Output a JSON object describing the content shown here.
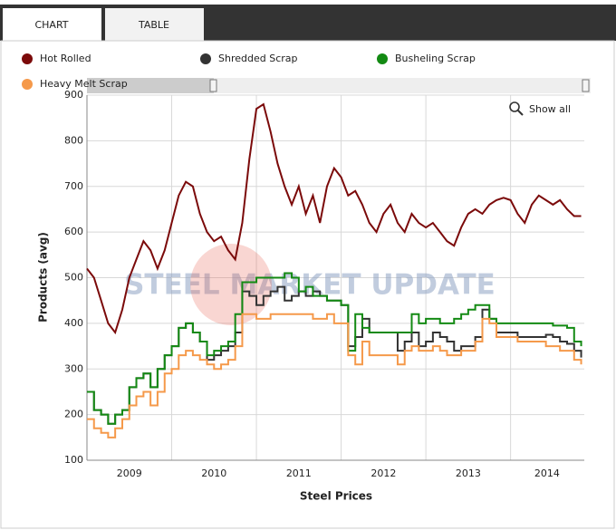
{
  "tabs": [
    "CHART",
    "TABLE"
  ],
  "show_all": "Show all",
  "watermark": "STEEL MARKET UPDATE",
  "chart_data": {
    "type": "line",
    "xlabel": "Steel Prices",
    "ylabel": "Products (avg)",
    "xlim": [
      2009.0,
      2014.87
    ],
    "ylim": [
      100,
      900
    ],
    "yticks": [
      100,
      200,
      300,
      400,
      500,
      600,
      700,
      800,
      900
    ],
    "xticks": [
      {
        "value": 2009.5,
        "label": "2009"
      },
      {
        "value": 2010.5,
        "label": "2010"
      },
      {
        "value": 2011.5,
        "label": "2011"
      },
      {
        "value": 2012.5,
        "label": "2012"
      },
      {
        "value": 2013.5,
        "label": "2013"
      },
      {
        "value": 2014.43,
        "label": "2014"
      }
    ],
    "xgrid": [
      2010,
      2011,
      2012,
      2013,
      2014
    ],
    "grid": true,
    "x": [
      2009.0,
      2009.083,
      2009.167,
      2009.25,
      2009.333,
      2009.417,
      2009.5,
      2009.583,
      2009.667,
      2009.75,
      2009.833,
      2009.917,
      2010.0,
      2010.083,
      2010.167,
      2010.25,
      2010.333,
      2010.417,
      2010.5,
      2010.583,
      2010.667,
      2010.75,
      2010.833,
      2010.917,
      2011.0,
      2011.083,
      2011.167,
      2011.25,
      2011.333,
      2011.417,
      2011.5,
      2011.583,
      2011.667,
      2011.75,
      2011.833,
      2011.917,
      2012.0,
      2012.083,
      2012.167,
      2012.25,
      2012.333,
      2012.417,
      2012.5,
      2012.583,
      2012.667,
      2012.75,
      2012.833,
      2012.917,
      2013.0,
      2013.083,
      2013.167,
      2013.25,
      2013.333,
      2013.417,
      2013.5,
      2013.583,
      2013.667,
      2013.75,
      2013.833,
      2013.917,
      2014.0,
      2014.083,
      2014.167,
      2014.25,
      2014.333,
      2014.417,
      2014.5,
      2014.583,
      2014.667,
      2014.75,
      2014.833
    ],
    "series": [
      {
        "name": "Hot Rolled",
        "color": "#7b0a0a",
        "step": false,
        "values": [
          520,
          500,
          450,
          400,
          380,
          430,
          500,
          540,
          580,
          560,
          520,
          560,
          620,
          680,
          710,
          700,
          640,
          600,
          580,
          590,
          560,
          540,
          620,
          760,
          870,
          880,
          820,
          750,
          700,
          660,
          700,
          640,
          680,
          620,
          700,
          740,
          720,
          680,
          690,
          660,
          620,
          600,
          640,
          660,
          620,
          600,
          640,
          620,
          610,
          620,
          600,
          580,
          570,
          610,
          640,
          650,
          640,
          660,
          670,
          675,
          670,
          640,
          620,
          660,
          680,
          670,
          660,
          670,
          650,
          635,
          635
        ]
      },
      {
        "name": "Shredded Scrap",
        "color": "#333333",
        "step": true,
        "values": [
          250,
          210,
          200,
          180,
          200,
          210,
          260,
          280,
          290,
          260,
          300,
          330,
          350,
          390,
          400,
          380,
          360,
          320,
          330,
          340,
          350,
          380,
          470,
          460,
          440,
          460,
          470,
          480,
          450,
          460,
          470,
          460,
          470,
          460,
          450,
          450,
          440,
          350,
          370,
          410,
          380,
          380,
          380,
          380,
          340,
          360,
          380,
          350,
          360,
          380,
          370,
          360,
          340,
          350,
          350,
          370,
          430,
          410,
          380,
          380,
          380,
          370,
          370,
          370,
          370,
          375,
          370,
          360,
          355,
          340,
          325
        ]
      },
      {
        "name": "Busheling Scrap",
        "color": "#138a13",
        "step": true,
        "values": [
          250,
          210,
          200,
          180,
          200,
          210,
          260,
          280,
          290,
          260,
          300,
          330,
          350,
          390,
          400,
          380,
          360,
          330,
          340,
          350,
          360,
          420,
          490,
          490,
          500,
          500,
          500,
          500,
          510,
          500,
          470,
          480,
          460,
          460,
          450,
          450,
          440,
          340,
          420,
          390,
          380,
          380,
          380,
          380,
          380,
          380,
          420,
          400,
          410,
          410,
          400,
          400,
          410,
          420,
          430,
          440,
          440,
          410,
          400,
          400,
          400,
          400,
          400,
          400,
          400,
          400,
          395,
          395,
          390,
          360,
          350
        ]
      },
      {
        "name": "Heavy Melt Scrap",
        "color": "#f5994a",
        "step": true,
        "values": [
          190,
          170,
          160,
          150,
          170,
          190,
          220,
          240,
          250,
          220,
          250,
          290,
          300,
          330,
          340,
          330,
          320,
          310,
          300,
          310,
          320,
          350,
          420,
          420,
          410,
          410,
          420,
          420,
          420,
          420,
          420,
          420,
          410,
          410,
          420,
          400,
          400,
          330,
          310,
          360,
          330,
          330,
          330,
          330,
          310,
          340,
          350,
          340,
          340,
          350,
          340,
          330,
          330,
          340,
          340,
          360,
          410,
          400,
          370,
          370,
          370,
          360,
          360,
          360,
          360,
          350,
          350,
          340,
          340,
          320,
          310
        ]
      }
    ]
  }
}
